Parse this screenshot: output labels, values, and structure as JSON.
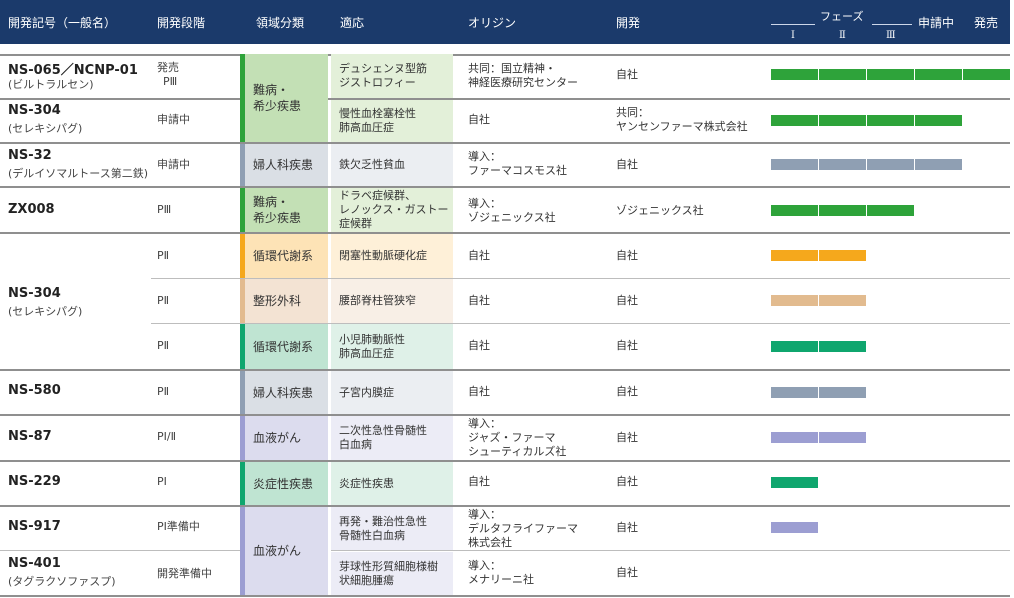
{
  "header": {
    "col_code": "開発記号（一般名）",
    "col_stage": "開発段階",
    "col_category": "領域分類",
    "col_indication": "適応",
    "col_origin": "オリジン",
    "col_development": "開発",
    "phase_title": "フェーズ",
    "phase_1": "Ⅰ",
    "phase_2": "Ⅱ",
    "phase_3": "Ⅲ",
    "filing": "申請中",
    "launch": "発売"
  },
  "colors": {
    "header_bg": "#1b3a6b",
    "green": "#2ea33a",
    "gray_blue": "#8f9fb3",
    "orange": "#f5a81c",
    "tan": "#e2bb8f",
    "teal": "#0fa66e",
    "lavender": "#9c9ed2"
  },
  "drugs": [
    {
      "code": "NS-065／NCNP-01",
      "generic": "(ビルトラルセン)"
    },
    {
      "code": "NS-304",
      "generic": "(セレキシパグ)"
    },
    {
      "code": "NS-32",
      "generic": "(デルイソマルトース第二鉄)"
    },
    {
      "code": "ZX008",
      "generic": ""
    },
    {
      "code": "NS-304",
      "generic": "(セレキシパグ)"
    },
    {
      "code": "NS-580",
      "generic": ""
    },
    {
      "code": "NS-87",
      "generic": ""
    },
    {
      "code": "NS-229",
      "generic": ""
    },
    {
      "code": "NS-917",
      "generic": ""
    },
    {
      "code": "NS-401",
      "generic": "(タグラクソファスプ)"
    }
  ],
  "rows": [
    {
      "stage_1": "発売",
      "stage_2": "PⅢ",
      "indication_1": "デュシェンヌ型筋",
      "indication_2": "ジストロフィー",
      "origin_1": "共同：国立精神・",
      "origin_2": "神経医療研究センター",
      "development_1": "自社",
      "development_2": "",
      "phase": 5,
      "bar_color": "green"
    },
    {
      "stage_1": "申請中",
      "stage_2": "",
      "indication_1": "慢性血栓塞栓性",
      "indication_2": "肺高血圧症",
      "origin_1": "自社",
      "origin_2": "",
      "development_1": "共同：",
      "development_2": "ヤンセンファーマ株式会社",
      "phase": 4,
      "bar_color": "green"
    },
    {
      "stage_1": "申請中",
      "stage_2": "",
      "indication_1": "鉄欠乏性貧血",
      "indication_2": "",
      "origin_1": "導入：",
      "origin_2": "ファーマコスモス社",
      "development_1": "自社",
      "development_2": "",
      "phase": 4,
      "bar_color": "gray_blue"
    },
    {
      "stage_1": "PⅢ",
      "stage_2": "",
      "indication_1": "ドラベ症候群、",
      "indication_2": "レノックス・ガストー",
      "indication_3": "症候群",
      "origin_1": "導入：",
      "origin_2": "ゾジェニックス社",
      "development_1": "ゾジェニックス社",
      "development_2": "",
      "phase": 3,
      "bar_color": "green"
    },
    {
      "stage_1": "PⅡ",
      "stage_2": "",
      "indication_1": "閉塞性動脈硬化症",
      "indication_2": "",
      "origin_1": "自社",
      "origin_2": "",
      "development_1": "自社",
      "development_2": "",
      "phase": 2,
      "bar_color": "orange"
    },
    {
      "stage_1": "PⅡ",
      "stage_2": "",
      "indication_1": "腰部脊柱管狭窄",
      "indication_2": "",
      "origin_1": "自社",
      "origin_2": "",
      "development_1": "自社",
      "development_2": "",
      "phase": 2,
      "bar_color": "tan"
    },
    {
      "stage_1": "PⅡ",
      "stage_2": "",
      "indication_1": "小児肺動脈性",
      "indication_2": "肺高血圧症",
      "origin_1": "自社",
      "origin_2": "",
      "development_1": "自社",
      "development_2": "",
      "phase": 2,
      "bar_color": "teal"
    },
    {
      "stage_1": "PⅡ",
      "stage_2": "",
      "indication_1": "子宮内膜症",
      "indication_2": "",
      "origin_1": "自社",
      "origin_2": "",
      "development_1": "自社",
      "development_2": "",
      "phase": 2,
      "bar_color": "gray_blue"
    },
    {
      "stage_1": "PⅠ/Ⅱ",
      "stage_2": "",
      "indication_1": "二次性急性骨髄性",
      "indication_2": "白血病",
      "origin_1": "導入：",
      "origin_2": "ジャズ・ファーマ",
      "origin_3": "シューティカルズ社",
      "development_1": "自社",
      "development_2": "",
      "phase": 2,
      "bar_color": "lavender"
    },
    {
      "stage_1": "PⅠ",
      "stage_2": "",
      "indication_1": "炎症性疾患",
      "indication_2": "",
      "origin_1": "自社",
      "origin_2": "",
      "development_1": "自社",
      "development_2": "",
      "phase": 1,
      "bar_color": "teal"
    },
    {
      "stage_1": "PⅠ準備中",
      "stage_2": "",
      "indication_1": "再発・難治性急性",
      "indication_2": "骨髄性白血病",
      "origin_1": "導入：",
      "origin_2": "デルタフライファーマ",
      "origin_3": "株式会社",
      "development_1": "自社",
      "development_2": "",
      "phase": 1,
      "bar_color": "lavender"
    },
    {
      "stage_1": "開発準備中",
      "stage_2": "",
      "indication_1": "芽球性形質細胞様樹",
      "indication_2": "状細胞腫瘍",
      "origin_1": "導入：",
      "origin_2": "メナリーニ社",
      "development_1": "自社",
      "development_2": "",
      "phase": 0,
      "bar_color": "lavender"
    }
  ],
  "categories": [
    {
      "label_1": "難病・",
      "label_2": "希少疾患",
      "color": "green"
    },
    {
      "label_1": "婦人科疾患",
      "label_2": "",
      "color": "gray_blue"
    },
    {
      "label_1": "難病・",
      "label_2": "希少疾患",
      "color": "green"
    },
    {
      "label_1": "循環代謝系",
      "label_2": "",
      "color": "orange"
    },
    {
      "label_1": "整形外科",
      "label_2": "",
      "color": "tan"
    },
    {
      "label_1": "循環代謝系",
      "label_2": "",
      "color": "teal"
    },
    {
      "label_1": "婦人科疾患",
      "label_2": "",
      "color": "gray_blue"
    },
    {
      "label_1": "血液がん",
      "label_2": "",
      "color": "lavender"
    },
    {
      "label_1": "炎症性疾患",
      "label_2": "",
      "color": "teal"
    },
    {
      "label_1": "血液がん",
      "label_2": "",
      "color": "lavender"
    }
  ]
}
